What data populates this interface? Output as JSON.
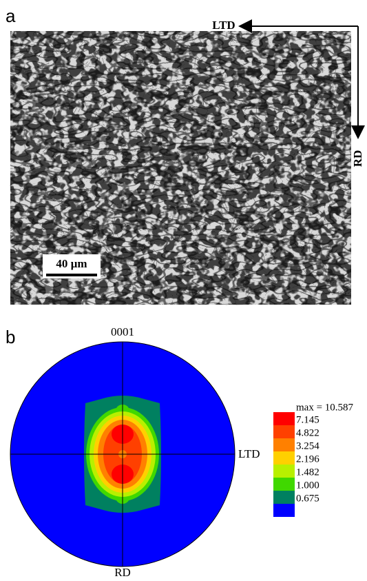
{
  "panel_a": {
    "label": "a",
    "direction_labels": {
      "horizontal": "LTD",
      "vertical": "RD"
    },
    "scale_bar": "40 µm"
  },
  "panel_b": {
    "label": "b",
    "top_label": "0001",
    "right_label": "LTD",
    "bottom_label": "RD",
    "legend": {
      "max_label": "max = 10.587",
      "levels": [
        "7.145",
        "4.822",
        "3.254",
        "2.196",
        "1.482",
        "1.000",
        "0.675"
      ]
    }
  }
}
